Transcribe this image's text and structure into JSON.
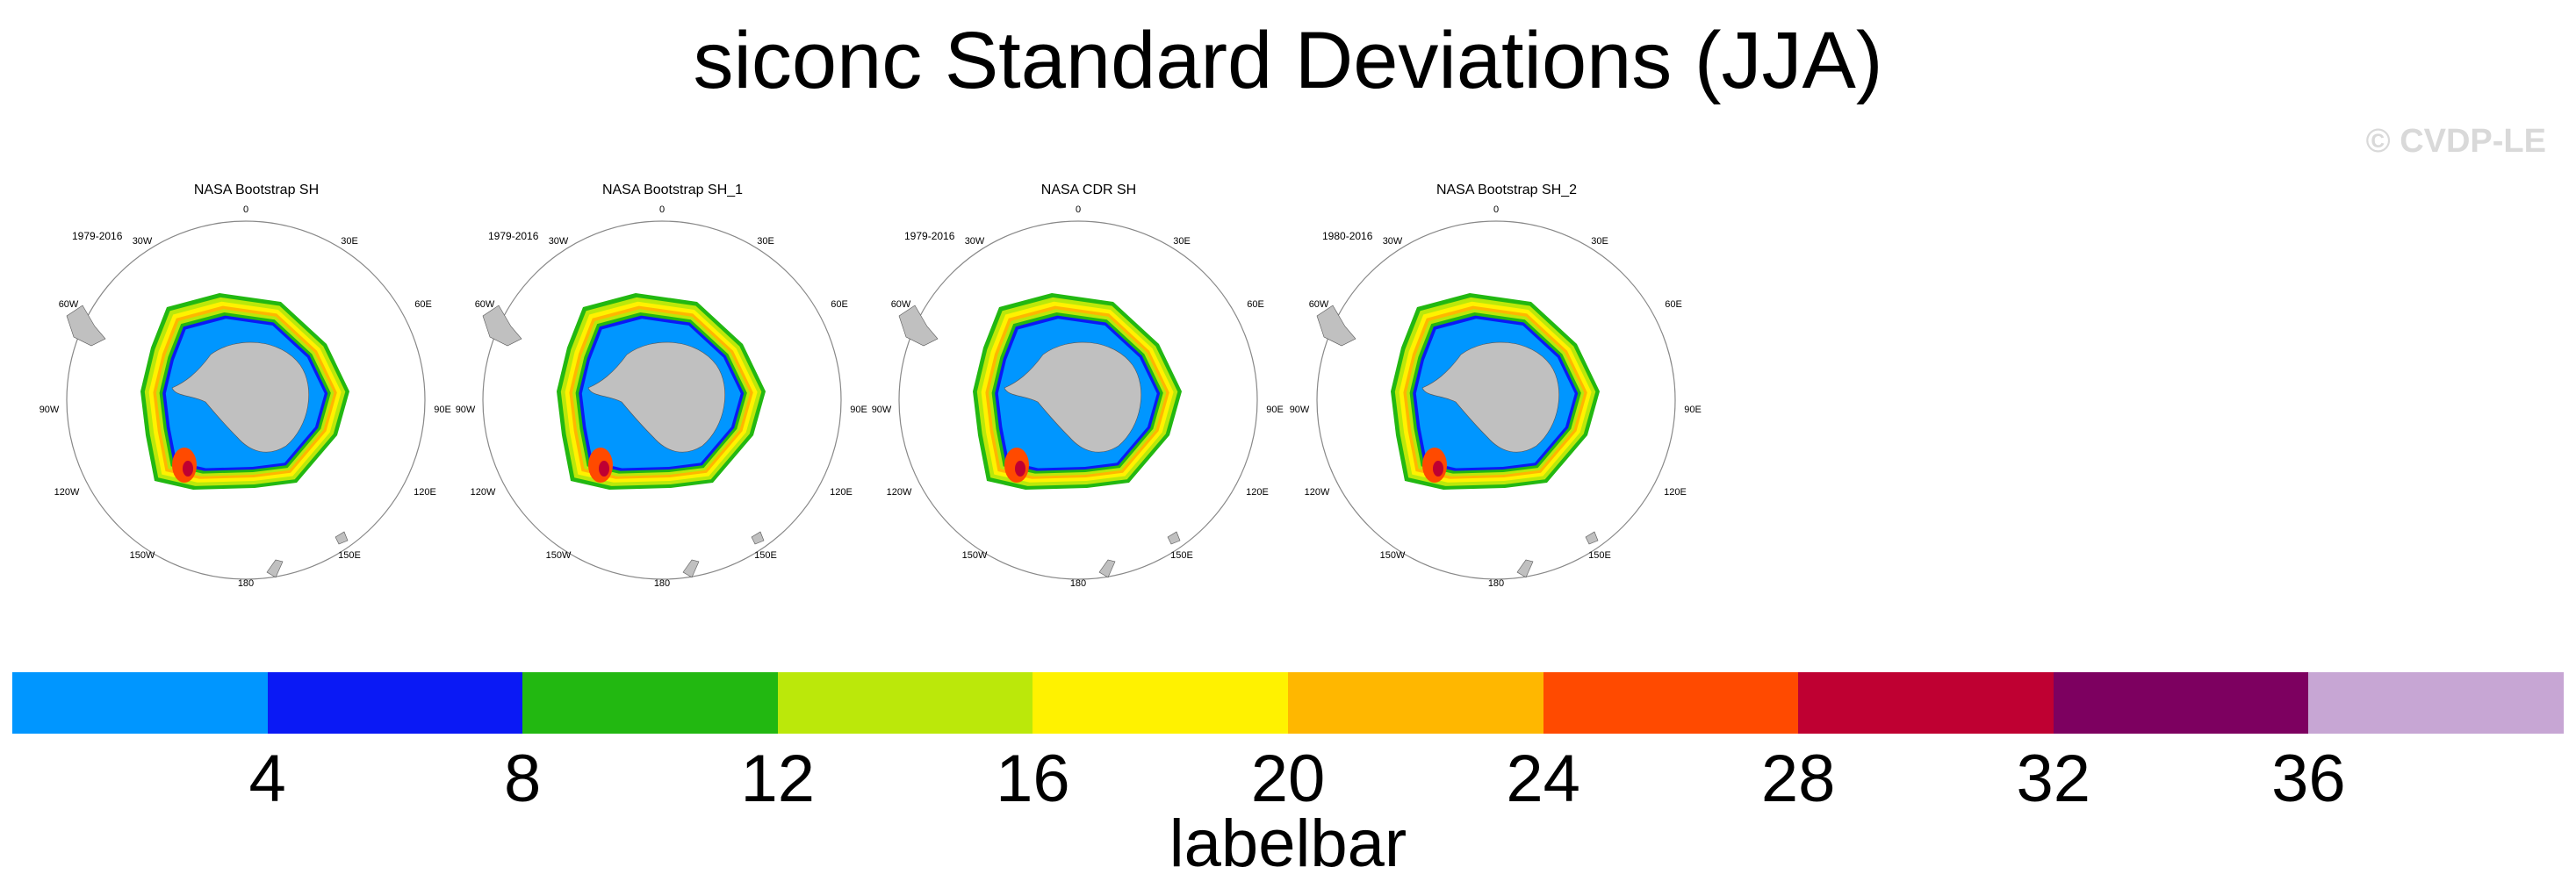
{
  "figure": {
    "title": "siconc Standard Deviations (JJA)",
    "watermark": "© CVDP-LE"
  },
  "panels": [
    {
      "title": "NASA Bootstrap SH",
      "years": "1979-2016"
    },
    {
      "title": "NASA Bootstrap SH_1",
      "years": "1979-2016"
    },
    {
      "title": "NASA CDR SH",
      "years": "1979-2016"
    },
    {
      "title": "NASA Bootstrap SH_2",
      "years": "1980-2016"
    }
  ],
  "longitude_labels": [
    "0",
    "30E",
    "60E",
    "90E",
    "120E",
    "150E",
    "180",
    "150W",
    "120W",
    "90W",
    "60W",
    "30W"
  ],
  "labelbar": {
    "title": "labelbar",
    "ticks": [
      "4",
      "8",
      "12",
      "16",
      "20",
      "24",
      "28",
      "32",
      "36"
    ],
    "colors": [
      "#0096ff",
      "#0a19f5",
      "#22b811",
      "#bbe80a",
      "#fff200",
      "#ffb700",
      "#ff4a00",
      "#bf0032",
      "#7d0060",
      "#c7a6d4"
    ]
  },
  "colors": {
    "land": "#c0c0c0",
    "ocean": "#ffffff",
    "map_outline": "#888888"
  }
}
